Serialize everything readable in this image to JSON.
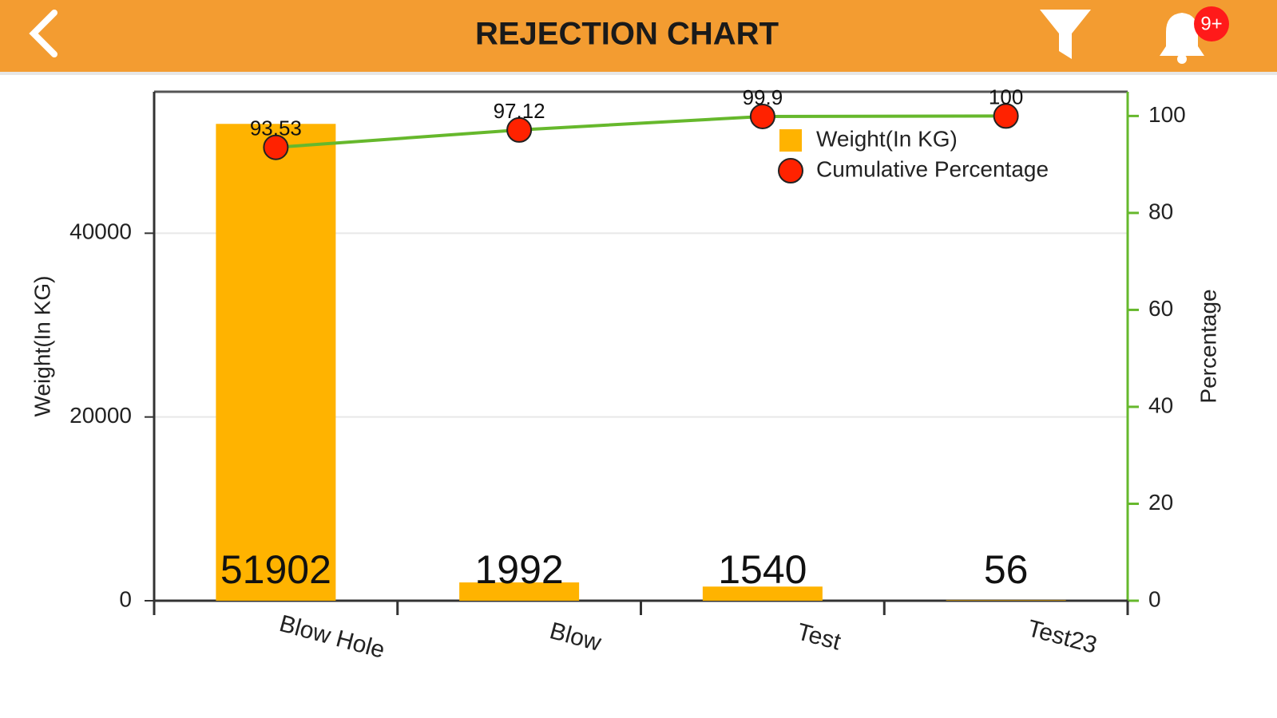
{
  "header": {
    "title": "REJECTION CHART",
    "badge": "9+"
  },
  "chart_data": {
    "type": "pareto",
    "categories": [
      "Blow Hole",
      "Blow",
      "Test",
      "Test23"
    ],
    "series": [
      {
        "name": "Weight(In KG)",
        "type": "bar",
        "color": "#ffb300",
        "values": [
          51902,
          1992,
          1540,
          56
        ]
      },
      {
        "name": "Cumulative Percentage",
        "type": "line",
        "axis": "y2",
        "color": "#ff2200",
        "line_color": "#66b82c",
        "values": [
          93.53,
          97.12,
          99.9,
          100
        ]
      }
    ],
    "ylabel": "Weight(In KG)",
    "y2label": "Percentage",
    "ylim": [
      0,
      55400
    ],
    "yticks": [
      0,
      20000,
      40000
    ],
    "y2lim": [
      0,
      105
    ],
    "y2ticks": [
      0,
      20,
      40,
      60,
      80,
      100
    ],
    "grid": true,
    "legend": "top-right"
  }
}
